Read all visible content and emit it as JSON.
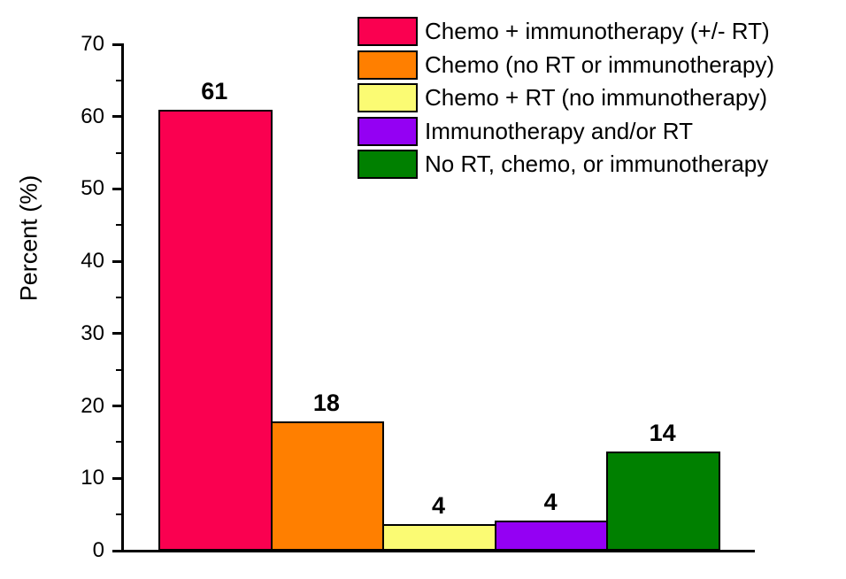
{
  "chart_data": {
    "type": "bar",
    "title": "",
    "xlabel": "",
    "ylabel": "Percent (%)",
    "ylim": [
      0,
      70
    ],
    "yticks": [
      0,
      10,
      20,
      30,
      40,
      50,
      60,
      70
    ],
    "minor_yticks": [
      5,
      15,
      25,
      35,
      45,
      55,
      65
    ],
    "grid": false,
    "legend_position": "upper-right",
    "axis_color": "#000000",
    "bar_border_color": "#000000",
    "categories": [
      "Chemo + immunotherapy (+/- RT)",
      "Chemo (no RT or immunotherapy)",
      "Chemo + RT (no immunotherapy)",
      "Immunotherapy and/or RT",
      "No RT, chemo, or immunotherapy"
    ],
    "values": [
      61,
      18,
      4,
      4,
      14
    ],
    "bars": [
      {
        "label": "Chemo + immunotherapy (+/- RT)",
        "value": 61,
        "display_label": "61",
        "plotted_height": 61,
        "color": "#FA0050",
        "color_name": "crimson-red"
      },
      {
        "label": "Chemo (no RT or immunotherapy)",
        "value": 18,
        "display_label": "18",
        "plotted_height": 17.9,
        "color": "#FF7F00",
        "color_name": "orange"
      },
      {
        "label": "Chemo + RT (no immunotherapy)",
        "value": 4,
        "display_label": "4",
        "plotted_height": 3.7,
        "color": "#FBFB73",
        "color_name": "pale-yellow"
      },
      {
        "label": "Immunotherapy and/or RT",
        "value": 4,
        "display_label": "4",
        "plotted_height": 4.2,
        "color": "#9400F3",
        "color_name": "violet-purple"
      },
      {
        "label": "No RT, chemo, or immunotherapy",
        "value": 14,
        "display_label": "14",
        "plotted_height": 13.7,
        "color": "#008000",
        "color_name": "green"
      }
    ]
  }
}
